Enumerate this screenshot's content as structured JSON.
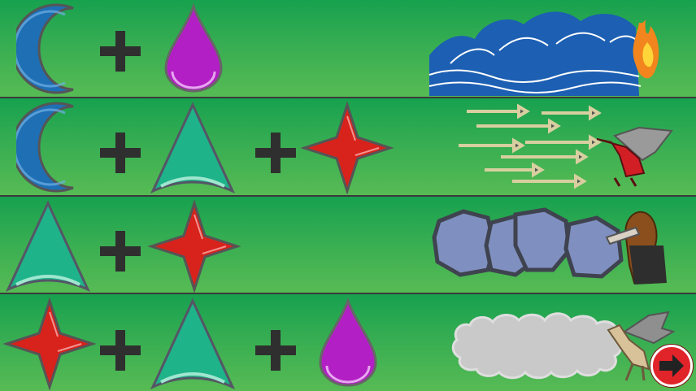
{
  "colors": {
    "background_top": "#17a14f",
    "background_bottom": "#57bb54",
    "divider": "#3a3a3a",
    "plus": "#2f2f2f",
    "moon": "#1f6fb4",
    "drop": "#b21fc4",
    "arch": "#1fb38a",
    "star": "#d8221c",
    "next_button": "#e0242a"
  },
  "spell_rows": [
    {
      "symbols": [
        "moon-icon",
        "drop-icon"
      ],
      "result": "tidal-wave-fire"
    },
    {
      "symbols": [
        "moon-icon",
        "arch-icon",
        "star-icon"
      ],
      "result": "arrows-dragon"
    },
    {
      "symbols": [
        "arch-icon",
        "star-icon"
      ],
      "result": "boulders-troll"
    },
    {
      "symbols": [
        "star-icon",
        "arch-icon",
        "drop-icon"
      ],
      "result": "smoke-winged-creature"
    }
  ],
  "next_button": {
    "icon": "arrow-right-icon"
  }
}
